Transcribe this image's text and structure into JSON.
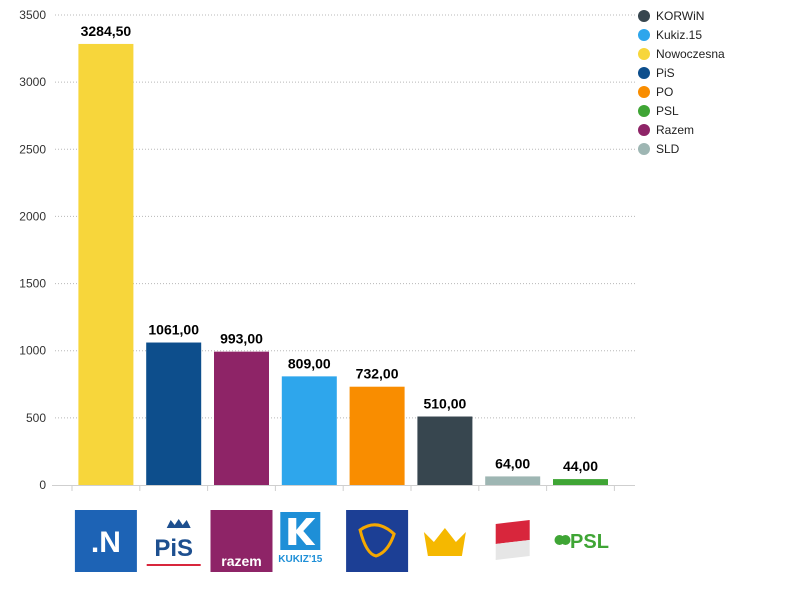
{
  "chart_data": {
    "type": "bar",
    "categories": [
      "Nowoczesna",
      "PiS",
      "Razem",
      "Kukiz.15",
      "PO",
      "KORWiN",
      "SLD",
      "PSL"
    ],
    "values": [
      3284.5,
      1061.0,
      993.0,
      809.0,
      732.0,
      510.0,
      64.0,
      44.0
    ],
    "value_labels": [
      "3284,50",
      "1061,00",
      "993,00",
      "809,00",
      "732,00",
      "510,00",
      "64,00",
      "44,00"
    ],
    "bar_colors": [
      "#f7d63b",
      "#0d4e8c",
      "#8e2467",
      "#2ea6ec",
      "#f98d00",
      "#37464f",
      "#9eb6b3",
      "#3fa535"
    ],
    "ylim": [
      0,
      3500
    ],
    "yticks": [
      "0",
      "500",
      "1000",
      "1500",
      "2000",
      "2500",
      "3000",
      "3500"
    ],
    "ytick_values": [
      0,
      500,
      1000,
      1500,
      2000,
      2500,
      3000,
      3500
    ],
    "grid": "horizontal dotted",
    "legend_position": "top-right",
    "legend": [
      {
        "name": "KORWiN",
        "color": "#37464f"
      },
      {
        "name": "Kukiz.15",
        "color": "#2ea6ec"
      },
      {
        "name": "Nowoczesna",
        "color": "#f7d63b"
      },
      {
        "name": "PiS",
        "color": "#0d4e8c"
      },
      {
        "name": "PO",
        "color": "#f98d00"
      },
      {
        "name": "PSL",
        "color": "#3fa535"
      },
      {
        "name": "Razem",
        "color": "#8e2467"
      },
      {
        "name": "SLD",
        "color": "#9eb6b3"
      }
    ]
  },
  "logos": [
    {
      "name": "nowoczesna-logo",
      "text": ".N"
    },
    {
      "name": "pis-logo",
      "text": "PiS"
    },
    {
      "name": "razem-logo",
      "text": "razem"
    },
    {
      "name": "kukiz-logo",
      "text": "KUKIZ'15"
    },
    {
      "name": "po-logo",
      "text": ""
    },
    {
      "name": "korwin-logo",
      "text": ""
    },
    {
      "name": "sld-logo",
      "text": ""
    },
    {
      "name": "psl-logo",
      "text": "PSL"
    }
  ]
}
